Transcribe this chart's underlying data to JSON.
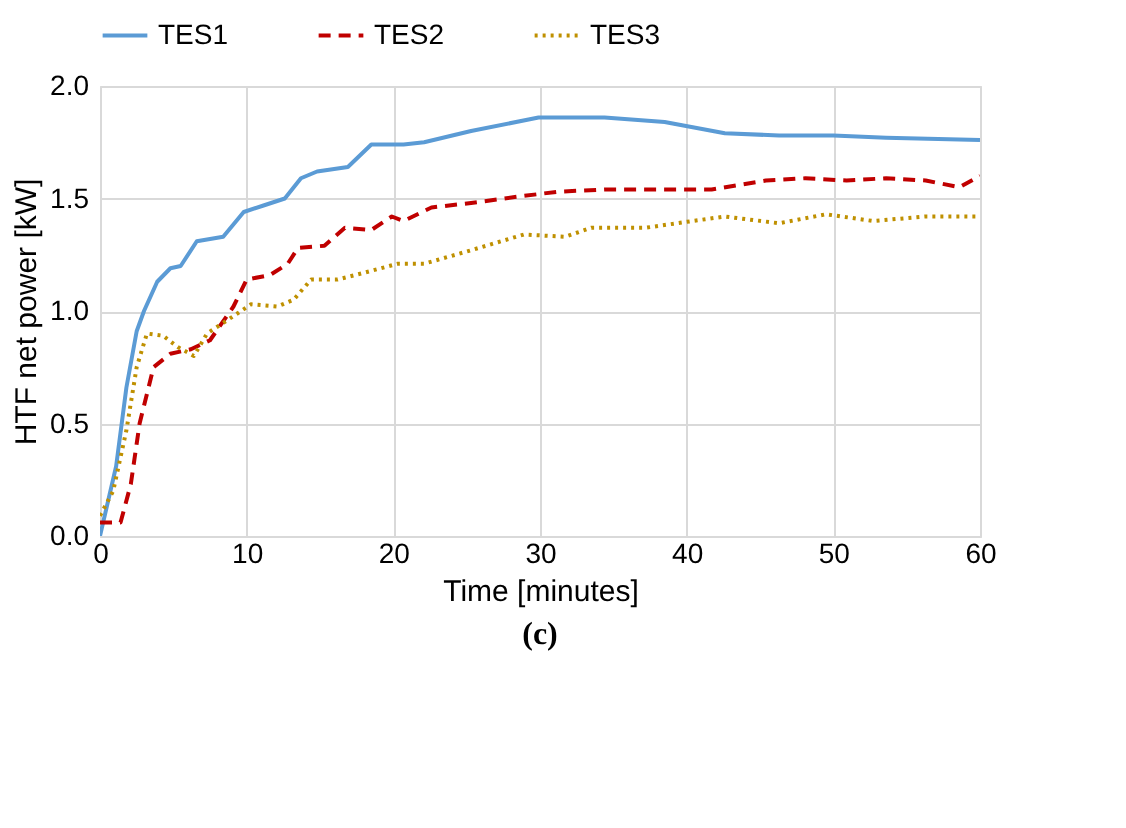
{
  "chart_data": {
    "type": "line",
    "xlabel": "Time [minutes]",
    "ylabel": "HTF net power [kW]",
    "annotations": [
      "(c)"
    ],
    "xlim": [
      0,
      60
    ],
    "xticks": [
      0,
      10,
      20,
      30,
      40,
      50,
      60
    ],
    "ylim": [
      0,
      2
    ],
    "yticks": [
      {
        "value": 0,
        "label": "0.0"
      },
      {
        "value": 0.5,
        "label": "0.5"
      },
      {
        "value": 1,
        "label": "1.0"
      },
      {
        "value": 1.5,
        "label": "1.5"
      },
      {
        "value": 2,
        "label": "2.0"
      }
    ],
    "grid": true,
    "legend": "top",
    "marker": "none",
    "series": [
      {
        "name": "TES1",
        "color": "#5b9bd5",
        "line_style": "solid",
        "x": [
          0,
          1.1,
          1.8,
          2.5,
          3.0,
          3.9,
          4.8,
          5.5,
          6.6,
          8.4,
          9.8,
          11.2,
          12.6,
          13.7,
          14.8,
          16.9,
          18.5,
          20.7,
          22.1,
          25.3,
          29.9,
          34.4,
          38.5,
          42.6,
          46.3,
          50,
          53.6,
          60
        ],
        "values": [
          0,
          0.31,
          0.66,
          0.91,
          1.0,
          1.13,
          1.19,
          1.2,
          1.31,
          1.33,
          1.44,
          1.47,
          1.5,
          1.59,
          1.62,
          1.64,
          1.74,
          1.74,
          1.75,
          1.8,
          1.86,
          1.86,
          1.84,
          1.79,
          1.78,
          1.78,
          1.77,
          1.76
        ]
      },
      {
        "name": "TES2",
        "color": "#c00000",
        "line_style": "dashed",
        "x": [
          0,
          1.4,
          2.1,
          2.7,
          3.65,
          4.8,
          6.2,
          7.5,
          9.1,
          10,
          11.6,
          12.8,
          13.5,
          15.3,
          16.7,
          18.5,
          19.9,
          20.7,
          22.6,
          25.3,
          28.7,
          31.2,
          34.4,
          38.1,
          41.7,
          45.4,
          48.1,
          50.9,
          53.6,
          56.3,
          58.6,
          60
        ],
        "values": [
          0.06,
          0.06,
          0.23,
          0.5,
          0.75,
          0.81,
          0.83,
          0.87,
          1.02,
          1.14,
          1.16,
          1.21,
          1.28,
          1.29,
          1.37,
          1.36,
          1.42,
          1.4,
          1.46,
          1.48,
          1.51,
          1.53,
          1.54,
          1.54,
          1.54,
          1.58,
          1.59,
          1.58,
          1.59,
          1.58,
          1.55,
          1.6
        ]
      },
      {
        "name": "TES3",
        "color": "#bf9000",
        "line_style": "dotted",
        "x": [
          0,
          0.9,
          1.8,
          2.5,
          3.2,
          4.3,
          5.3,
          6.4,
          7.3,
          8.7,
          10.3,
          12.1,
          13.2,
          14.4,
          16.2,
          18,
          20.3,
          22.1,
          25.3,
          28.9,
          31.7,
          33.5,
          37.2,
          40.4,
          42.6,
          46.3,
          49.5,
          52.7,
          56.3,
          60
        ],
        "values": [
          0.09,
          0.2,
          0.47,
          0.75,
          0.9,
          0.89,
          0.84,
          0.8,
          0.9,
          0.96,
          1.03,
          1.02,
          1.05,
          1.14,
          1.14,
          1.17,
          1.21,
          1.21,
          1.27,
          1.34,
          1.33,
          1.37,
          1.37,
          1.4,
          1.42,
          1.39,
          1.43,
          1.4,
          1.42,
          1.42
        ]
      }
    ]
  }
}
